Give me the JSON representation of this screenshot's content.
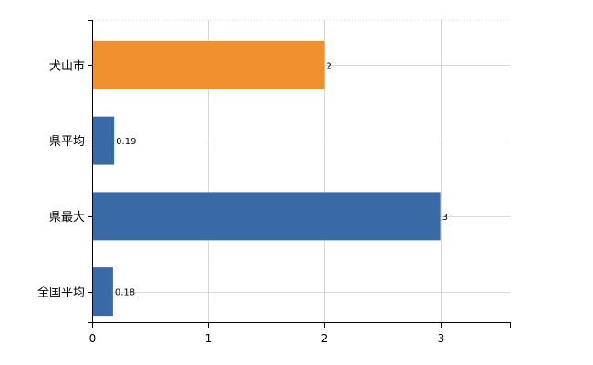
{
  "chart_data": {
    "type": "bar",
    "orientation": "horizontal",
    "categories": [
      "犬山市",
      "県平均",
      "県最大",
      "全国平均"
    ],
    "values": [
      2,
      0.19,
      3,
      0.18
    ],
    "value_labels": [
      "2",
      "0.19",
      "3",
      "0.18"
    ],
    "bar_colors": [
      "#f0902f",
      "#3a6aa5",
      "#3a6aa5",
      "#3a6aa5"
    ],
    "xlim": [
      0,
      3.6
    ],
    "xticks": [
      0,
      1,
      2,
      3
    ],
    "xtick_labels": [
      "0",
      "1",
      "2",
      "3"
    ],
    "grid": true,
    "title": "",
    "xlabel": "",
    "ylabel": ""
  }
}
